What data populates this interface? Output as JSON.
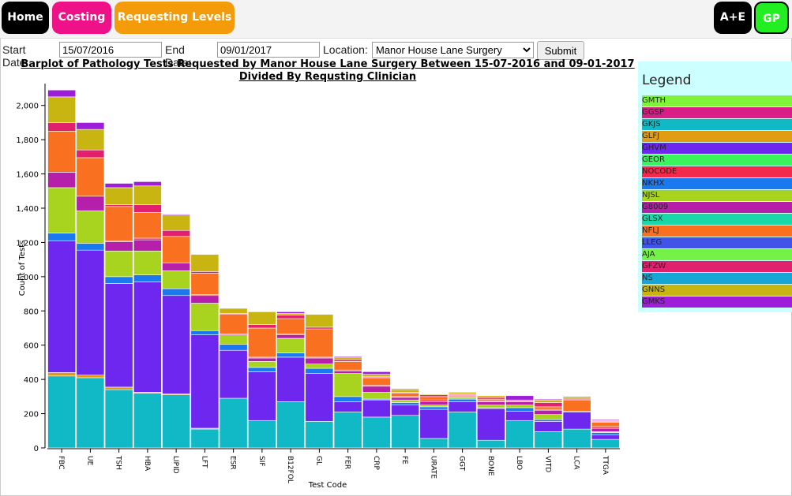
{
  "nav": {
    "home": "Home",
    "costing": "Costing",
    "requesting_levels": "Requesting Levels",
    "ae": "A+E",
    "gp": "GP",
    "colors": {
      "home": "#000000",
      "costing": "#ee1188",
      "requesting_levels": "#f49b09",
      "ae": "#000000",
      "gp": "#22ee22"
    }
  },
  "form": {
    "start_label": "Start Date:",
    "start_value": "15/07/2016",
    "end_label": "End Date:",
    "end_value": "09/01/2017",
    "location_label": "Location:",
    "location_value": "Manor House Lane Surgery",
    "submit": "Submit"
  },
  "chart_title_line1": "Barplot of Pathology Tests Requested by Manor House Lane Surgery Between 15-07-2016 and 09-01-2017",
  "chart_title_line2": "Divided By Requsting Clinician",
  "legend": {
    "title": "Legend",
    "items": [
      {
        "label": "GMTH",
        "color": "#7ff23a"
      },
      {
        "label": "GGSP",
        "color": "#d81d86"
      },
      {
        "label": "GKJS",
        "color": "#11b9c6"
      },
      {
        "label": "GLFJ",
        "color": "#e19c13"
      },
      {
        "label": "GHVM",
        "color": "#6e27ee"
      },
      {
        "label": "GEOR",
        "color": "#3af45b"
      },
      {
        "label": "NOCODE",
        "color": "#f32a4b"
      },
      {
        "label": "NKHX",
        "color": "#1a79ef"
      },
      {
        "label": "NJSL",
        "color": "#a8d41f"
      },
      {
        "label": "G8009",
        "color": "#b51fa9"
      },
      {
        "label": "GLSX",
        "color": "#18d8a9"
      },
      {
        "label": "NFLJ",
        "color": "#fa7021"
      },
      {
        "label": "LLEG",
        "color": "#4254e8"
      },
      {
        "label": "AJA",
        "color": "#74f247"
      },
      {
        "label": "GFZW",
        "color": "#e1206e"
      },
      {
        "label": "NS",
        "color": "#15a6d5"
      },
      {
        "label": "GNNS",
        "color": "#c8b512"
      },
      {
        "label": "GMKS",
        "color": "#9d1dd8"
      }
    ]
  },
  "chart_data": {
    "type": "bar",
    "xlabel": "Test Code",
    "ylabel": "Count of Tests",
    "ylim": [
      0,
      2100
    ],
    "yticks": [
      0,
      200,
      400,
      600,
      800,
      1000,
      1200,
      1400,
      1600,
      1800,
      2000
    ],
    "ytick_labels": [
      "0",
      "200",
      "400",
      "600",
      "800",
      "1,000",
      "1,200",
      "1,400",
      "1,600",
      "1,800",
      "2,000"
    ],
    "categories": [
      "FBC",
      "UE",
      "TSH",
      "HBA",
      "LIPID",
      "LFT",
      "ESR",
      "SIF",
      "B12FOL",
      "GL",
      "FER",
      "CRP",
      "FE",
      "URATE",
      "GGT",
      "BONE",
      "LBO",
      "VITD",
      "LCA",
      "TTGA"
    ],
    "series": [
      {
        "name": "GKJS",
        "color": "#11b9c6",
        "values": [
          420,
          410,
          340,
          320,
          310,
          110,
          290,
          160,
          270,
          155,
          210,
          180,
          190,
          55,
          210,
          45,
          160,
          95,
          110,
          50
        ]
      },
      {
        "name": "GLFJ",
        "color": "#e19c13",
        "values": [
          20,
          15,
          15,
          5,
          5,
          5,
          0,
          0,
          0,
          0,
          0,
          0,
          0,
          0,
          0,
          0,
          0,
          0,
          0,
          0
        ]
      },
      {
        "name": "GHVM",
        "color": "#6e27ee",
        "values": [
          770,
          730,
          605,
          645,
          575,
          545,
          280,
          285,
          260,
          280,
          60,
          100,
          60,
          170,
          60,
          185,
          55,
          60,
          100,
          25
        ]
      },
      {
        "name": "NKHX",
        "color": "#1a79ef",
        "values": [
          45,
          40,
          40,
          40,
          40,
          25,
          35,
          25,
          25,
          30,
          30,
          5,
          15,
          15,
          15,
          5,
          20,
          10,
          5,
          15
        ]
      },
      {
        "name": "NJSL",
        "color": "#a8d41f",
        "values": [
          265,
          190,
          150,
          140,
          105,
          160,
          55,
          35,
          85,
          25,
          135,
          40,
          15,
          10,
          10,
          15,
          15,
          30,
          0,
          5
        ]
      },
      {
        "name": "G8009",
        "color": "#b51fa9",
        "values": [
          90,
          85,
          55,
          65,
          45,
          45,
          5,
          20,
          20,
          35,
          15,
          35,
          15,
          20,
          5,
          20,
          20,
          25,
          0,
          20
        ]
      },
      {
        "name": "NOCODE",
        "color": "#f32a4b",
        "values": [
          0,
          0,
          5,
          10,
          0,
          5,
          0,
          5,
          5,
          5,
          5,
          5,
          5,
          10,
          5,
          5,
          5,
          5,
          0,
          10
        ]
      },
      {
        "name": "NFLJ",
        "color": "#fa7021",
        "values": [
          240,
          225,
          200,
          150,
          155,
          125,
          115,
          170,
          90,
          165,
          50,
          45,
          20,
          20,
          5,
          10,
          0,
          15,
          65,
          25
        ]
      },
      {
        "name": "GFZW",
        "color": "#e1206e",
        "values": [
          50,
          45,
          10,
          45,
          35,
          10,
          5,
          20,
          20,
          10,
          10,
          5,
          5,
          10,
          5,
          10,
          5,
          25,
          5,
          5
        ]
      },
      {
        "name": "GNNS",
        "color": "#c8b512",
        "values": [
          150,
          120,
          100,
          110,
          90,
          100,
          30,
          75,
          10,
          75,
          15,
          15,
          15,
          5,
          10,
          10,
          0,
          15,
          10,
          5
        ]
      },
      {
        "name": "GMKS",
        "color": "#9d1dd8",
        "values": [
          40,
          40,
          25,
          25,
          5,
          0,
          0,
          0,
          10,
          0,
          5,
          15,
          5,
          0,
          0,
          0,
          25,
          5,
          5,
          5
        ]
      }
    ]
  }
}
